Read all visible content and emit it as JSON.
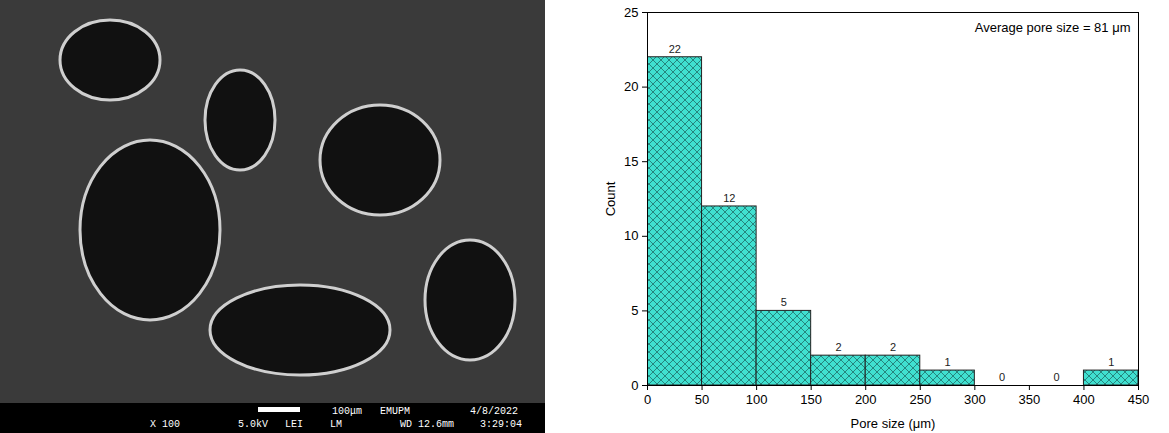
{
  "chart_data": {
    "type": "histogram",
    "bins": [
      0,
      50,
      100,
      150,
      200,
      250,
      300,
      350,
      400,
      450
    ],
    "values": [
      22,
      12,
      5,
      2,
      2,
      1,
      0,
      0,
      1
    ],
    "data_labels": true,
    "color": "#40e0d0",
    "x_label": "Pore size (μm)",
    "y_label": "Count",
    "annotation": "Average pore size = 81 μm",
    "xlim": [
      0,
      450
    ],
    "xticks": [
      0,
      50,
      100,
      150,
      200,
      250,
      300,
      350,
      400,
      450
    ],
    "ylim": [
      0,
      25
    ],
    "yticks": [
      0,
      5,
      10,
      15,
      20,
      25
    ],
    "grid": false
  },
  "micrograph": {
    "scale_bar": "100μm",
    "info_top": [
      "EMUPM",
      "4/8/2022"
    ],
    "info_bottom": [
      "X 100",
      "5.0kV",
      "LEI",
      "LM",
      "WD 12.6mm",
      "3:29:04"
    ]
  }
}
